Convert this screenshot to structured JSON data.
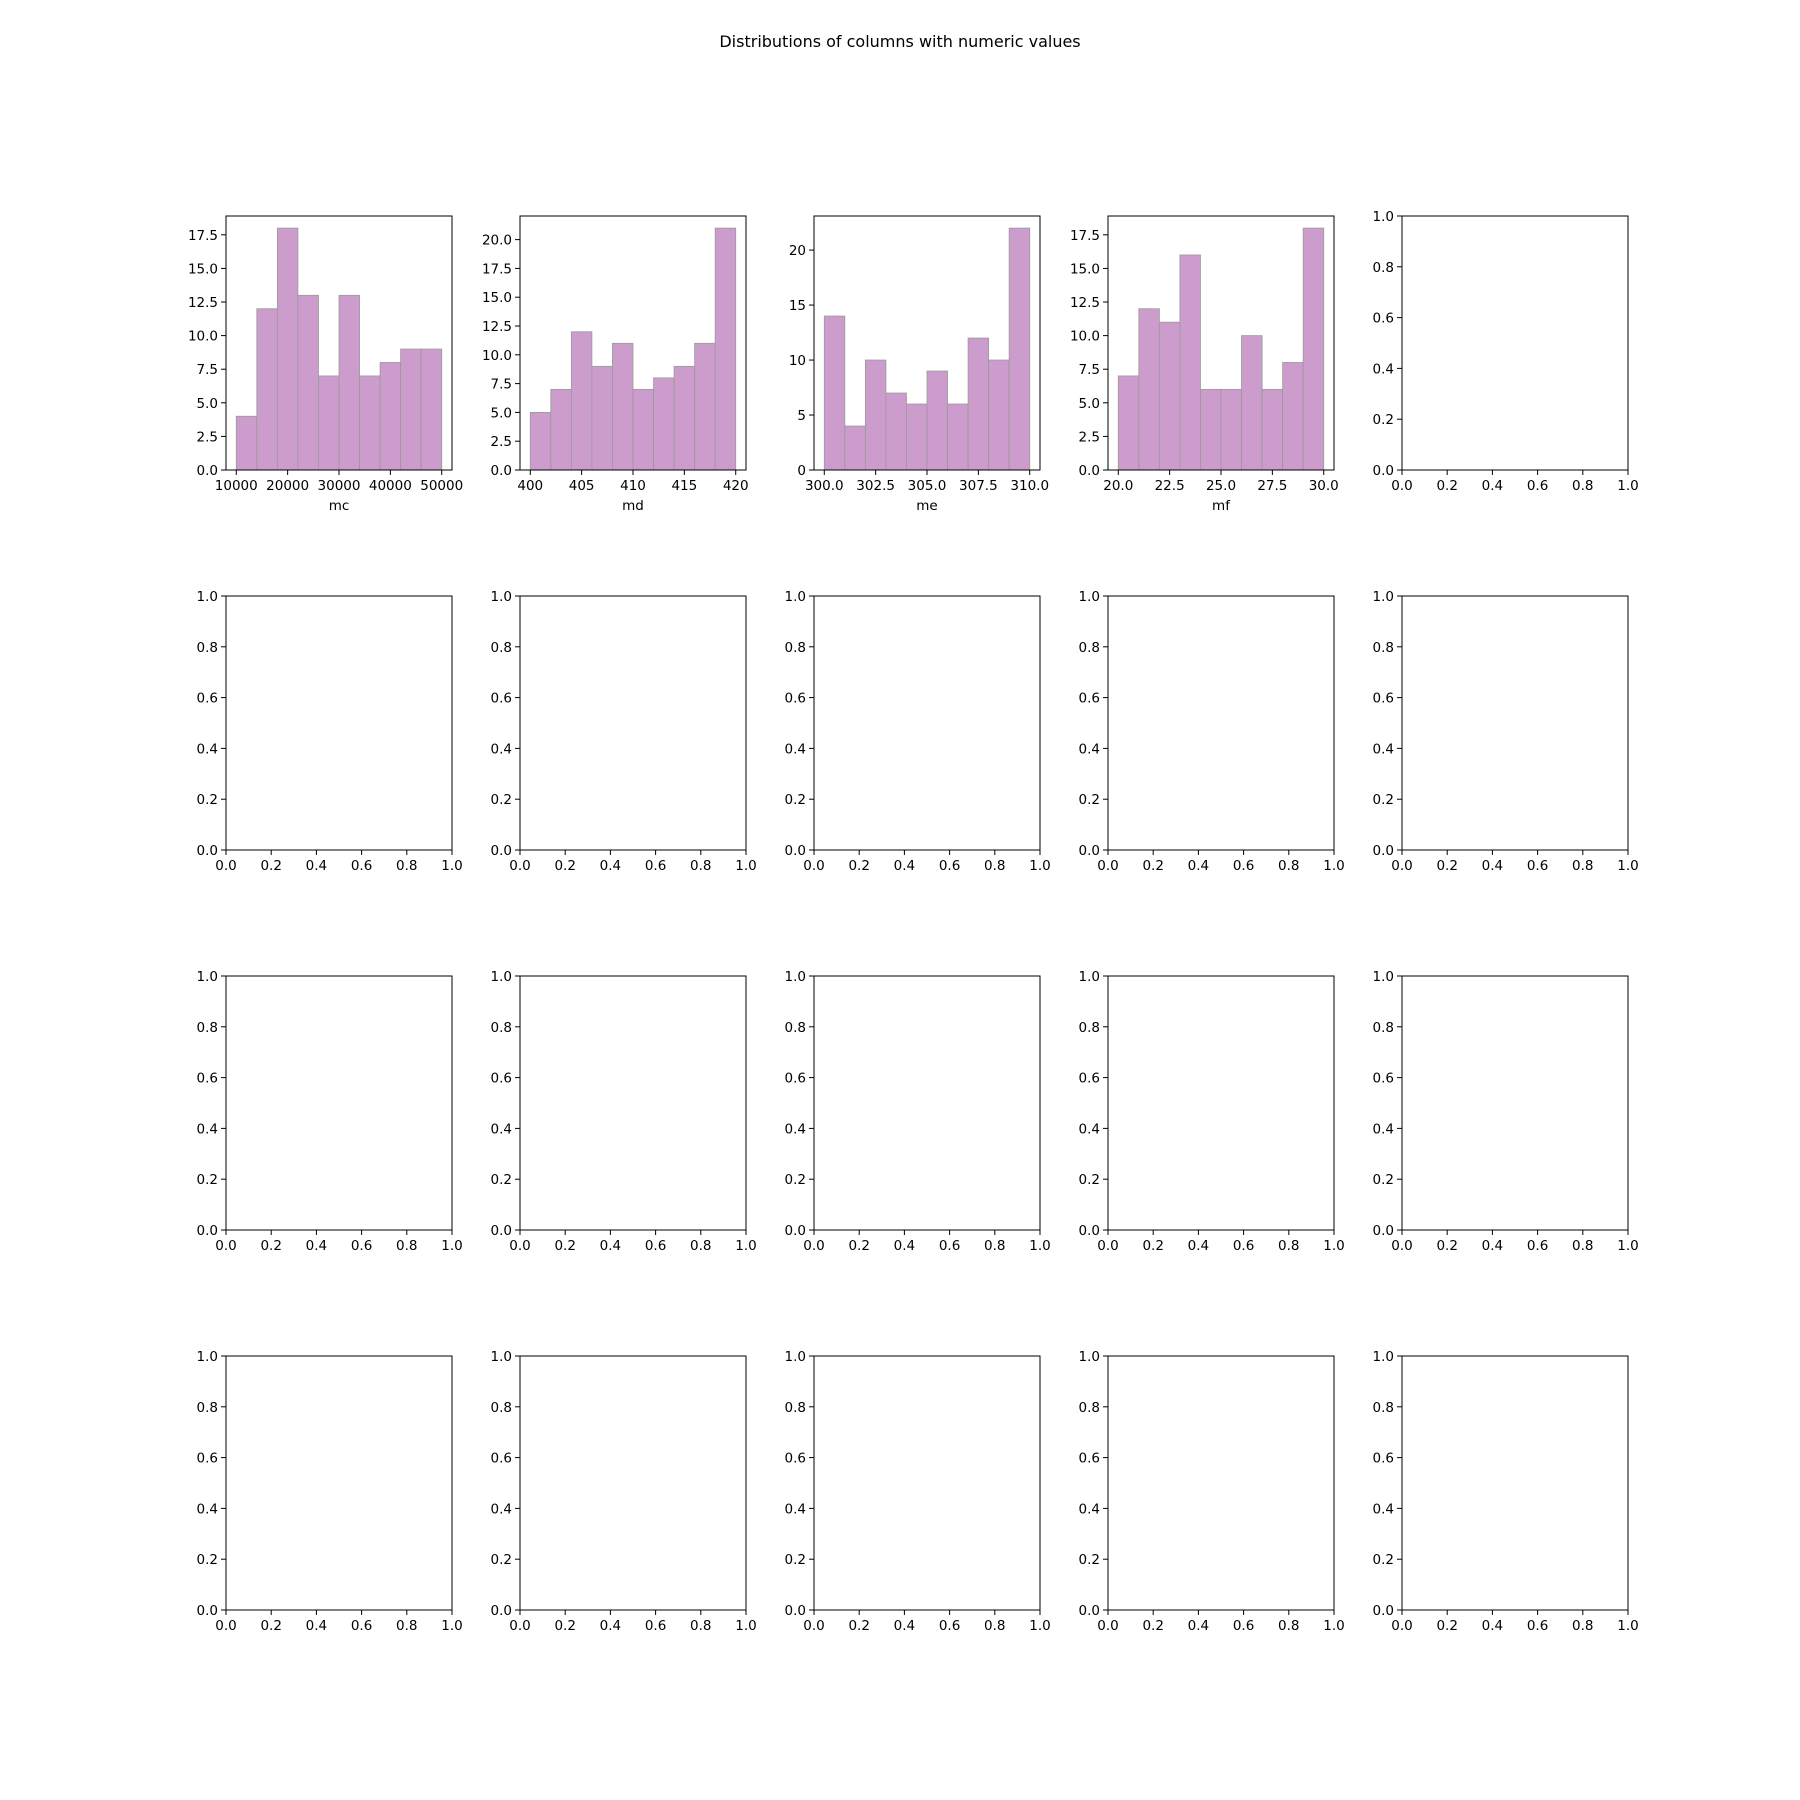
{
  "figure": {
    "title": "Distributions of columns with numeric values"
  },
  "style": {
    "bar_color": "#cc9ccc",
    "bar_edge_color": "#9a9a9a",
    "axis_color": "#000000",
    "background": "#ffffff"
  },
  "chart_data": [
    {
      "type": "bar",
      "subtype": "histogram",
      "xlabel": "mc",
      "ylabel": "",
      "bin_edges": [
        10000,
        14000,
        18000,
        22000,
        26000,
        30000,
        34000,
        38000,
        42000,
        46000,
        50000
      ],
      "values": [
        4,
        12,
        18,
        13,
        7,
        13,
        7,
        8,
        9,
        9
      ],
      "xlim": [
        8000,
        52000
      ],
      "ylim": [
        0,
        18.9
      ],
      "xticks": [
        10000,
        20000,
        30000,
        40000,
        50000
      ],
      "xtick_labels": [
        "10000",
        "20000",
        "30000",
        "40000",
        "50000"
      ],
      "yticks": [
        0,
        2.5,
        5,
        7.5,
        10,
        12.5,
        15,
        17.5
      ],
      "ytick_labels": [
        "0.0",
        "2.5",
        "5.0",
        "7.5",
        "10.0",
        "12.5",
        "15.0",
        "17.5"
      ]
    },
    {
      "type": "bar",
      "subtype": "histogram",
      "xlabel": "md",
      "ylabel": "",
      "bin_edges": [
        400,
        402,
        404,
        406,
        408,
        410,
        412,
        414,
        416,
        418,
        420
      ],
      "values": [
        5,
        7,
        12,
        9,
        11,
        7,
        8,
        9,
        11,
        21
      ],
      "xlim": [
        399,
        421
      ],
      "ylim": [
        0,
        22.05
      ],
      "xticks": [
        400,
        405,
        410,
        415,
        420
      ],
      "xtick_labels": [
        "400",
        "405",
        "410",
        "415",
        "420"
      ],
      "yticks": [
        0,
        2.5,
        5,
        7.5,
        10,
        12.5,
        15,
        17.5,
        20
      ],
      "ytick_labels": [
        "0.0",
        "2.5",
        "5.0",
        "7.5",
        "10.0",
        "12.5",
        "15.0",
        "17.5",
        "20.0"
      ]
    },
    {
      "type": "bar",
      "subtype": "histogram",
      "xlabel": "me",
      "ylabel": "",
      "bin_edges": [
        300,
        301,
        302,
        303,
        304,
        305,
        306,
        307,
        308,
        309,
        310
      ],
      "values": [
        14,
        4,
        10,
        7,
        6,
        9,
        6,
        12,
        10,
        22
      ],
      "xlim": [
        299.5,
        310.5
      ],
      "ylim": [
        0,
        23.1
      ],
      "xticks": [
        300,
        302.5,
        305,
        307.5,
        310
      ],
      "xtick_labels": [
        "300.0",
        "302.5",
        "305.0",
        "307.5",
        "310.0"
      ],
      "yticks": [
        0,
        5,
        10,
        15,
        20
      ],
      "ytick_labels": [
        "0",
        "5",
        "10",
        "15",
        "20"
      ]
    },
    {
      "type": "bar",
      "subtype": "histogram",
      "xlabel": "mf",
      "ylabel": "",
      "bin_edges": [
        20,
        21,
        22,
        23,
        24,
        25,
        26,
        27,
        28,
        29,
        30
      ],
      "values": [
        7,
        12,
        11,
        16,
        6,
        6,
        10,
        6,
        8,
        18
      ],
      "xlim": [
        19.5,
        30.5
      ],
      "ylim": [
        0,
        18.9
      ],
      "xticks": [
        20,
        22.5,
        25,
        27.5,
        30
      ],
      "xtick_labels": [
        "20.0",
        "22.5",
        "25.0",
        "27.5",
        "30.0"
      ],
      "yticks": [
        0,
        2.5,
        5,
        7.5,
        10,
        12.5,
        15,
        17.5
      ],
      "ytick_labels": [
        "0.0",
        "2.5",
        "5.0",
        "7.5",
        "10.0",
        "12.5",
        "15.0",
        "17.5"
      ]
    }
  ],
  "empty_axes": {
    "count": 16,
    "xlim": [
      0,
      1
    ],
    "ylim": [
      0,
      1
    ],
    "xticks": [
      0,
      0.2,
      0.4,
      0.6,
      0.8,
      1
    ],
    "xtick_labels": [
      "0.0",
      "0.2",
      "0.4",
      "0.6",
      "0.8",
      "1.0"
    ],
    "yticks": [
      0,
      0.2,
      0.4,
      0.6,
      0.8,
      1
    ],
    "ytick_labels": [
      "0.0",
      "0.2",
      "0.4",
      "0.6",
      "0.8",
      "1.0"
    ]
  }
}
